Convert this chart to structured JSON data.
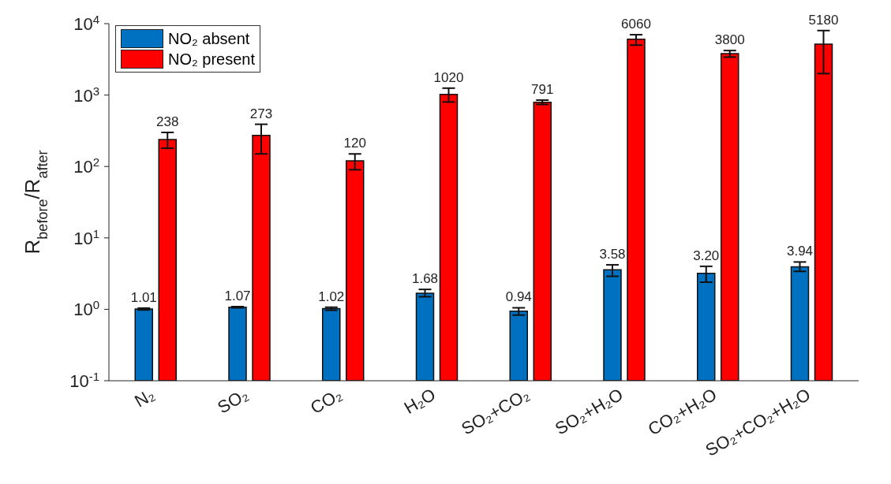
{
  "chart_data": {
    "type": "bar",
    "ylabel": "R$_{before}$/R$_{after}$",
    "categories": [
      "N₂",
      "SO₂",
      "CO₂",
      "H₂O",
      "SO₂+CO₂",
      "SO₂+H₂O",
      "CO₂+H₂O",
      "SO₂+CO₂+H₂O"
    ],
    "series": [
      {
        "name": "NO₂ absent",
        "color": "#0070c0",
        "values": [
          1.01,
          1.07,
          1.02,
          1.68,
          0.94,
          3.58,
          3.2,
          3.94
        ],
        "value_labels": [
          "1.01",
          "1.07",
          "1.02",
          "1.68",
          "0.94",
          "3.58",
          "3.20",
          "3.94"
        ],
        "errors": [
          [
            0.98,
            1.04
          ],
          [
            1.05,
            1.09
          ],
          [
            0.97,
            1.07
          ],
          [
            1.5,
            1.9
          ],
          [
            0.83,
            1.05
          ],
          [
            2.9,
            4.2
          ],
          [
            2.4,
            4.0
          ],
          [
            3.4,
            4.6
          ]
        ]
      },
      {
        "name": "NO₂ present",
        "color": "#ff0000",
        "values": [
          238,
          273,
          120,
          1020,
          791,
          6060,
          3800,
          5180
        ],
        "value_labels": [
          "238",
          "273",
          "120",
          "1020",
          "791",
          "6060",
          "3800",
          "5180"
        ],
        "errors": [
          [
            180,
            300
          ],
          [
            150,
            390
          ],
          [
            90,
            150
          ],
          [
            800,
            1250
          ],
          [
            740,
            850
          ],
          [
            5000,
            7000
          ],
          [
            3400,
            4200
          ],
          [
            2000,
            8000
          ]
        ]
      }
    ],
    "log": "y",
    "ylim": [
      0.1,
      10000
    ],
    "yticks": [
      {
        "value": 0.1,
        "label": "10$^{-1}$"
      },
      {
        "value": 1,
        "label": "10$^{0}$"
      },
      {
        "value": 10,
        "label": "10$^{1}$"
      },
      {
        "value": 100,
        "label": "10$^{2}$"
      },
      {
        "value": 1000,
        "label": "10$^{3}$"
      },
      {
        "value": 10000,
        "label": "10$^{4}$"
      }
    ],
    "grid": false,
    "legend": "top left"
  }
}
